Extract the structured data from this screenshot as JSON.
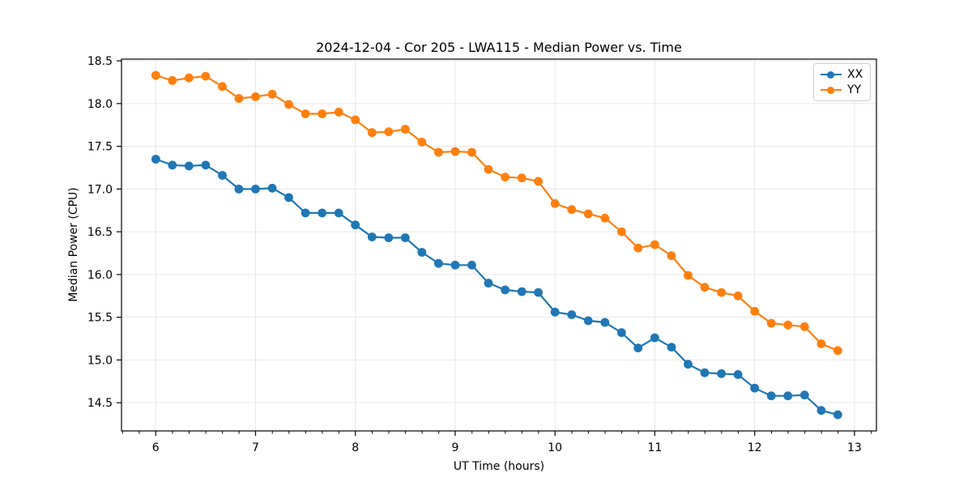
{
  "chart_data": {
    "type": "line",
    "title": "2024-12-04 - Cor 205 - LWA115 - Median Power vs. Time",
    "xlabel": "UT Time (hours)",
    "ylabel": "Median Power (CPU)",
    "xlim": [
      5.657,
      13.22
    ],
    "ylim": [
      14.17,
      18.52
    ],
    "x_ticks": [
      6,
      7,
      8,
      9,
      10,
      11,
      12,
      13
    ],
    "x_tick_labels": [
      "6",
      "7",
      "8",
      "9",
      "10",
      "11",
      "12",
      "13"
    ],
    "x_minor_tick_step": 0.1667,
    "y_ticks": [
      14.5,
      15.0,
      15.5,
      16.0,
      16.5,
      17.0,
      17.5,
      18.0,
      18.5
    ],
    "y_tick_labels": [
      "14.5",
      "15.0",
      "15.5",
      "16.0",
      "16.5",
      "17.0",
      "17.5",
      "18.0",
      "18.5"
    ],
    "grid": true,
    "legend_position": "upper right",
    "x": [
      6.0,
      6.167,
      6.333,
      6.5,
      6.667,
      6.833,
      7.0,
      7.167,
      7.333,
      7.5,
      7.667,
      7.833,
      8.0,
      8.167,
      8.333,
      8.5,
      8.667,
      8.833,
      9.0,
      9.167,
      9.333,
      9.5,
      9.667,
      9.833,
      10.0,
      10.167,
      10.333,
      10.5,
      10.667,
      10.833,
      11.0,
      11.167,
      11.333,
      11.5,
      11.667,
      11.833,
      12.0,
      12.167,
      12.333,
      12.5,
      12.667,
      12.833
    ],
    "series": [
      {
        "name": "XX",
        "color": "#1f77b4",
        "values": [
          17.35,
          17.28,
          17.27,
          17.28,
          17.16,
          17.0,
          17.0,
          17.01,
          16.9,
          16.72,
          16.72,
          16.72,
          16.58,
          16.44,
          16.43,
          16.43,
          16.26,
          16.13,
          16.11,
          16.11,
          15.9,
          15.82,
          15.8,
          15.79,
          15.56,
          15.53,
          15.46,
          15.44,
          15.32,
          15.14,
          15.26,
          15.15,
          14.95,
          14.85,
          14.84,
          14.83,
          14.67,
          14.58,
          14.58,
          14.59,
          14.41,
          14.36
        ]
      },
      {
        "name": "YY",
        "color": "#ff7f0e",
        "values": [
          18.33,
          18.27,
          18.3,
          18.32,
          18.2,
          18.06,
          18.08,
          18.11,
          17.99,
          17.88,
          17.88,
          17.9,
          17.81,
          17.66,
          17.67,
          17.7,
          17.55,
          17.43,
          17.44,
          17.43,
          17.23,
          17.14,
          17.13,
          17.09,
          16.83,
          16.76,
          16.71,
          16.66,
          16.5,
          16.31,
          16.35,
          16.22,
          15.99,
          15.85,
          15.79,
          15.75,
          15.57,
          15.43,
          15.41,
          15.39,
          15.19,
          15.11
        ]
      }
    ],
    "style": {
      "grid_color": "#e6e6e6",
      "spine_color": "#000000",
      "tick_color": "#000000",
      "background": "#ffffff"
    }
  }
}
